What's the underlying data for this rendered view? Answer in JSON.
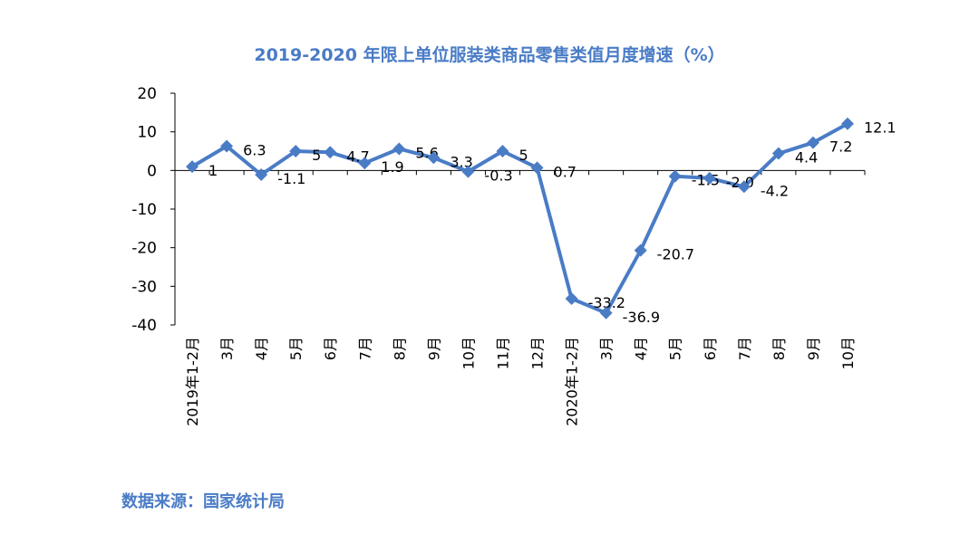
{
  "chart_data": {
    "type": "line",
    "title": "2019-2020 年限上单位服装类商品零售类值月度增速（%）",
    "xlabel": "",
    "ylabel": "",
    "ylim": [
      -40,
      20
    ],
    "yticks": [
      20,
      10,
      0,
      -10,
      -20,
      -30,
      -40
    ],
    "grid": false,
    "legend": "none",
    "categories": [
      "2019年1-2月",
      "3月",
      "4月",
      "5月",
      "6月",
      "7月",
      "8月",
      "9月",
      "10月",
      "11月",
      "12月",
      "2020年1-2月",
      "3月",
      "4月",
      "5月",
      "6月",
      "7月",
      "8月",
      "9月",
      "10月"
    ],
    "series": [
      {
        "name": "月度增速",
        "color": "#4a7cc6",
        "values": [
          1,
          6.3,
          -1.1,
          5,
          4.7,
          1.9,
          5.6,
          3.3,
          -0.3,
          5,
          0.7,
          -33.2,
          -36.9,
          -20.7,
          -1.5,
          -2.0,
          -4.2,
          4.4,
          7.2,
          12.1
        ],
        "labels": [
          "1",
          "6.3",
          "-1.1",
          "5",
          "4.7",
          "1.9",
          "5.6",
          "3.3",
          "-0.3",
          "5",
          "0.7",
          "-33.2",
          "-36.9",
          "-20.7",
          "-1.5",
          "-2.0",
          "-4.2",
          "4.4",
          "7.2",
          "12.1"
        ]
      }
    ]
  },
  "source": "数据来源：国家统计局"
}
